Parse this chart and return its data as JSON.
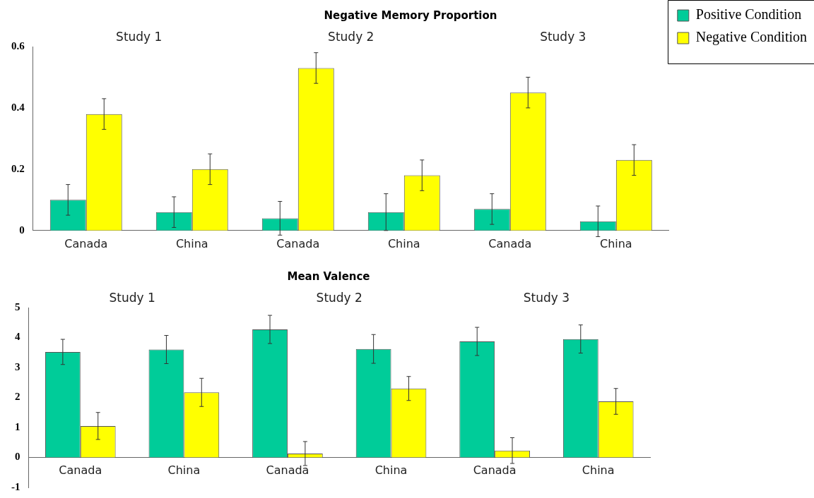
{
  "chart_data": [
    {
      "type": "bar",
      "title": "Negative Memory Proportion",
      "categories": [
        "Canada",
        "China",
        "Canada",
        "China",
        "Canada",
        "China"
      ],
      "series": [
        {
          "name": "Positive Condition",
          "color": "#00cc99",
          "values": [
            0.1,
            0.06,
            0.04,
            0.06,
            0.07,
            0.03
          ],
          "errors": [
            0.05,
            0.05,
            0.055,
            0.06,
            0.05,
            0.05
          ]
        },
        {
          "name": "Negative Condition",
          "color": "#ffff00",
          "values": [
            0.38,
            0.2,
            0.53,
            0.18,
            0.45,
            0.23
          ],
          "errors": [
            0.05,
            0.05,
            0.05,
            0.05,
            0.05,
            0.05
          ]
        }
      ],
      "ylim": [
        0,
        0.6
      ],
      "yticks": [
        0,
        0.2,
        0.4,
        0.6
      ],
      "grid": false,
      "legend": "top right",
      "annotations": [
        "Study 1",
        "Study 2",
        "Study 3"
      ]
    },
    {
      "type": "bar",
      "title": "Mean Valence",
      "categories": [
        "Canada",
        "China",
        "Canada",
        "China",
        "Canada",
        "China"
      ],
      "series": [
        {
          "color": "#00cc99",
          "values": [
            3.52,
            3.6,
            4.27,
            3.62,
            3.87,
            3.95
          ],
          "errors": [
            0.42,
            0.47,
            0.47,
            0.48,
            0.47,
            0.47
          ]
        },
        {
          "color": "#ffff00",
          "values": [
            1.05,
            2.17,
            0.13,
            2.3,
            0.23,
            1.87
          ],
          "errors": [
            0.45,
            0.47,
            0.4,
            0.4,
            0.43,
            0.43
          ]
        }
      ],
      "ylim": [
        -1,
        5
      ],
      "yticks": [
        -1,
        0,
        1,
        2,
        3,
        4,
        5
      ],
      "grid": false,
      "legend": false,
      "annotations": [
        "Study 1",
        "Study 2",
        "Study 3"
      ]
    }
  ]
}
